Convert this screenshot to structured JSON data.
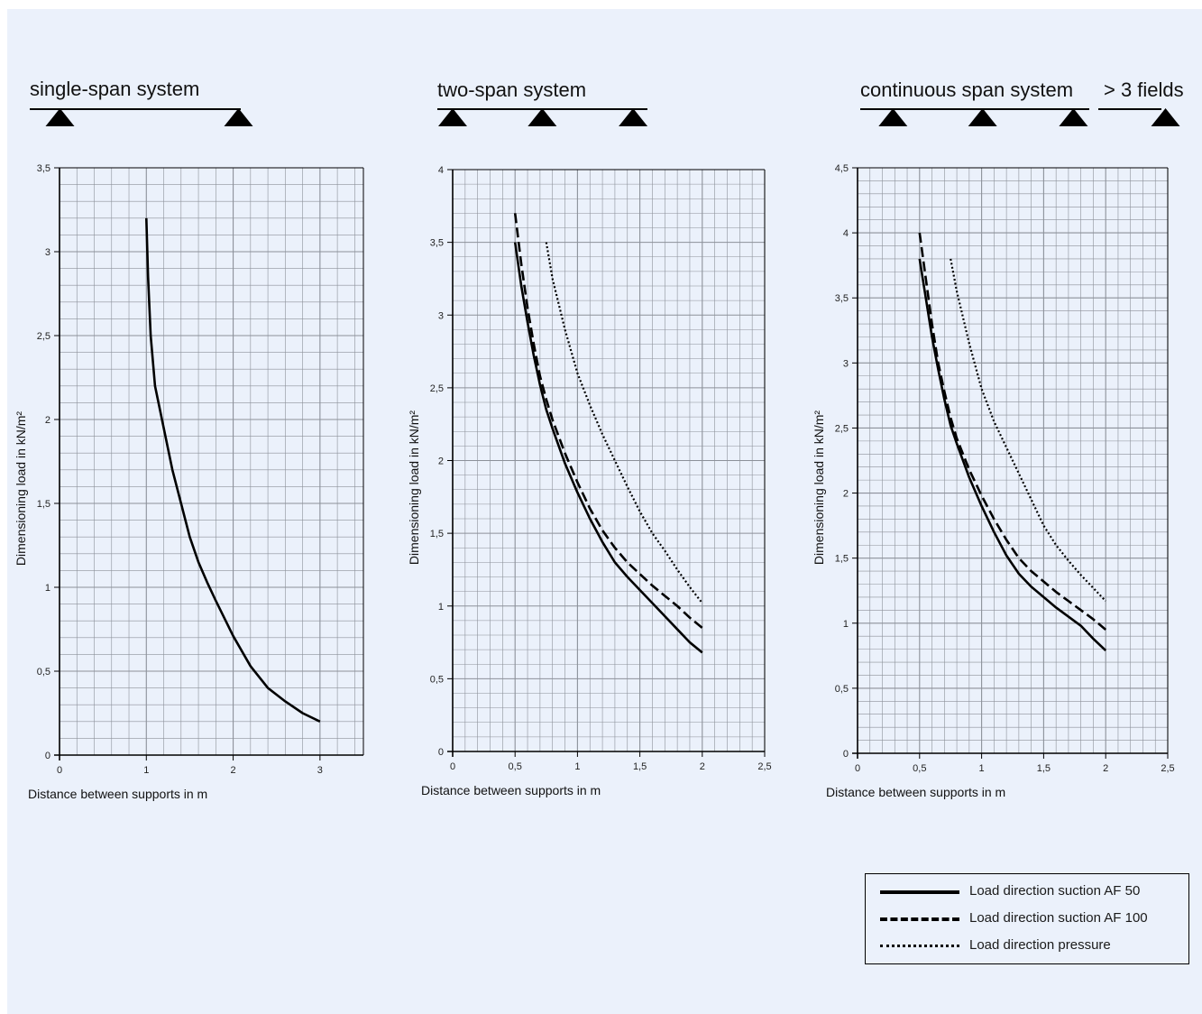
{
  "colors": {
    "background": "#ebf1fb",
    "grid": "#8c919a",
    "axis": "#000000",
    "series": "#000000"
  },
  "chart_data": [
    {
      "type": "line",
      "title": "single-span system",
      "xlabel": "Distance between supports in m",
      "ylabel": "Dimensioning load in kN/m²",
      "xlim": [
        0,
        3.5
      ],
      "ylim": [
        0,
        3.5
      ],
      "x_ticks": [
        "0",
        "1",
        "2",
        "3"
      ],
      "y_ticks": [
        "0",
        "0,5",
        "1",
        "1,5",
        "2",
        "2,5",
        "3",
        "3,5"
      ],
      "grid": true,
      "supports": [
        0.15,
        1.95
      ],
      "series": [
        {
          "name": "Load direction suction AF 50",
          "style": "solid",
          "x": [
            1.0,
            1.02,
            1.05,
            1.1,
            1.2,
            1.3,
            1.4,
            1.5,
            1.6,
            1.7,
            1.8,
            2.0,
            2.2,
            2.4,
            2.6,
            2.8,
            3.0
          ],
          "y": [
            3.2,
            2.85,
            2.5,
            2.2,
            1.95,
            1.7,
            1.5,
            1.3,
            1.15,
            1.03,
            0.92,
            0.71,
            0.53,
            0.4,
            0.32,
            0.25,
            0.2
          ]
        }
      ]
    },
    {
      "type": "line",
      "title": "two-span system",
      "xlabel": "Distance between supports in m",
      "ylabel": "Dimensioning load in kN/m²",
      "xlim": [
        0,
        2.5
      ],
      "ylim": [
        0,
        4
      ],
      "x_ticks": [
        "0",
        "0,5",
        "1",
        "1,5",
        "2",
        "2,5"
      ],
      "y_ticks": [
        "0",
        "0,5",
        "1",
        "1,5",
        "2",
        "2,5",
        "3",
        "3,5",
        "4"
      ],
      "grid": true,
      "supports": [
        0.0,
        0.72,
        1.45
      ],
      "series": [
        {
          "name": "Load direction suction AF 50",
          "style": "solid",
          "x": [
            0.5,
            0.55,
            0.6,
            0.65,
            0.7,
            0.75,
            0.8,
            0.9,
            1.0,
            1.1,
            1.2,
            1.3,
            1.4,
            1.5,
            1.6,
            1.7,
            1.8,
            1.9,
            2.0
          ],
          "y": [
            3.5,
            3.2,
            2.95,
            2.72,
            2.52,
            2.35,
            2.22,
            1.98,
            1.78,
            1.6,
            1.44,
            1.3,
            1.2,
            1.11,
            1.02,
            0.93,
            0.84,
            0.75,
            0.68
          ]
        },
        {
          "name": "Load direction suction AF 100",
          "style": "dashed",
          "x": [
            0.5,
            0.55,
            0.6,
            0.65,
            0.7,
            0.75,
            0.8,
            0.9,
            1.0,
            1.1,
            1.2,
            1.3,
            1.4,
            1.5,
            1.6,
            1.7,
            1.8,
            1.9,
            2.0
          ],
          "y": [
            3.7,
            3.35,
            3.05,
            2.8,
            2.58,
            2.42,
            2.28,
            2.05,
            1.85,
            1.67,
            1.52,
            1.4,
            1.3,
            1.22,
            1.14,
            1.07,
            1.0,
            0.92,
            0.85
          ]
        },
        {
          "name": "Load direction pressure",
          "style": "dotted",
          "x": [
            0.75,
            0.8,
            0.9,
            1.0,
            1.1,
            1.2,
            1.3,
            1.4,
            1.5,
            1.6,
            1.7,
            1.8,
            1.9,
            2.0
          ],
          "y": [
            3.5,
            3.25,
            2.9,
            2.6,
            2.38,
            2.18,
            2.0,
            1.82,
            1.65,
            1.5,
            1.38,
            1.25,
            1.13,
            1.02
          ]
        }
      ]
    },
    {
      "type": "line",
      "title": "continuous span system",
      "title_suffix": "> 3 fields",
      "xlabel": "Distance between supports in m",
      "ylabel": "Dimensioning load in kN/m²",
      "xlim": [
        0,
        2.5
      ],
      "ylim": [
        0,
        4.5
      ],
      "x_ticks": [
        "0",
        "0,5",
        "1",
        "1,5",
        "2",
        "2,5"
      ],
      "y_ticks": [
        "0",
        "0,5",
        "1",
        "1,5",
        "2",
        "2,5",
        "3",
        "3,5",
        "4",
        "4,5"
      ],
      "grid": true,
      "supports": [
        0.14,
        0.86,
        1.59,
        2.33
      ],
      "series": [
        {
          "name": "Load direction suction AF 50",
          "style": "solid",
          "x": [
            0.5,
            0.55,
            0.6,
            0.65,
            0.7,
            0.75,
            0.8,
            0.9,
            1.0,
            1.1,
            1.2,
            1.3,
            1.4,
            1.5,
            1.6,
            1.7,
            1.8,
            1.9,
            2.0
          ],
          "y": [
            3.8,
            3.5,
            3.2,
            2.95,
            2.72,
            2.52,
            2.38,
            2.12,
            1.9,
            1.7,
            1.52,
            1.38,
            1.28,
            1.2,
            1.12,
            1.05,
            0.98,
            0.88,
            0.79
          ]
        },
        {
          "name": "Load direction suction AF 100",
          "style": "dashed",
          "x": [
            0.5,
            0.55,
            0.6,
            0.65,
            0.7,
            0.75,
            0.8,
            0.9,
            1.0,
            1.1,
            1.2,
            1.3,
            1.4,
            1.5,
            1.6,
            1.7,
            1.8,
            1.9,
            2.0
          ],
          "y": [
            4.0,
            3.65,
            3.3,
            3.0,
            2.78,
            2.58,
            2.42,
            2.18,
            1.98,
            1.8,
            1.64,
            1.5,
            1.4,
            1.32,
            1.24,
            1.17,
            1.1,
            1.03,
            0.95
          ]
        },
        {
          "name": "Load direction pressure",
          "style": "dotted",
          "x": [
            0.75,
            0.8,
            0.9,
            1.0,
            1.1,
            1.2,
            1.3,
            1.4,
            1.5,
            1.6,
            1.7,
            1.8,
            1.9,
            2.0
          ],
          "y": [
            3.8,
            3.55,
            3.15,
            2.8,
            2.55,
            2.35,
            2.15,
            1.95,
            1.75,
            1.6,
            1.48,
            1.37,
            1.27,
            1.17
          ]
        }
      ]
    }
  ],
  "legend": {
    "items": [
      {
        "label": "Load direction suction AF 50",
        "style": "solid"
      },
      {
        "label": "Load direction suction AF 100",
        "style": "dashed"
      },
      {
        "label": "Load direction pressure",
        "style": "dotted"
      }
    ]
  }
}
